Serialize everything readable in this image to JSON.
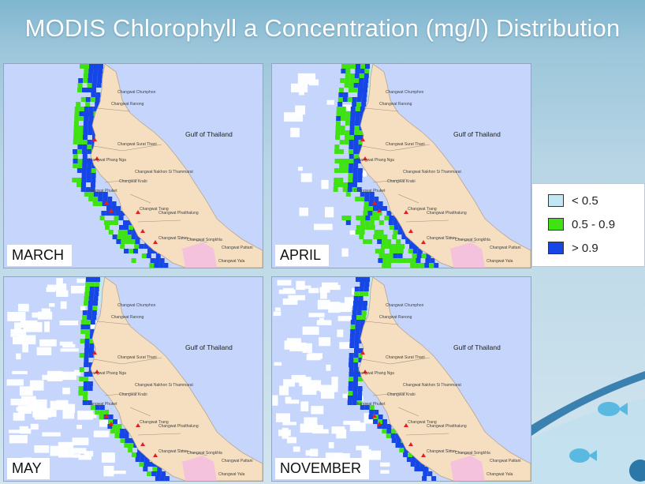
{
  "title": "MODIS Chlorophyll a Concentration (mg/l) Distribution",
  "colors": {
    "sea": "#c6d5fb",
    "land": "#f6dfc0",
    "land_pink": "#f4c2dc",
    "low": "#c2e6f4",
    "mid": "#3fe212",
    "high": "#1646e6"
  },
  "legend": [
    {
      "swatch_color": "#c2e6f4",
      "label": "< 0.5"
    },
    {
      "swatch_color": "#3fe212",
      "label": "0.5 - 0.9"
    },
    {
      "swatch_color": "#1646e6",
      "label": "> 0.9"
    }
  ],
  "map_labels": {
    "gulf": "Gulf of Thailand",
    "chumphon": "Changwat Chumphon",
    "ranong": "Changwat Ranong",
    "surat": "Changwat Surat Thani",
    "phangnga": "Changwat Phang Nga",
    "nakhon": "Changwat Nakhon Si Thammarat",
    "krabi": "Changwat Krabi",
    "phuket": "Changwat Phuket",
    "trang": "Changwat Trang",
    "phatthalung": "Changwat Phatthalung",
    "satun": "Changwat Satun",
    "songkhla": "Changwat Songkhla",
    "pattani": "Changwat Pattani",
    "yala": "Changwat Yala"
  },
  "maps": [
    {
      "month": "MARCH"
    },
    {
      "month": "APRIL"
    },
    {
      "month": "MAY"
    },
    {
      "month": "NOVEMBER"
    }
  ]
}
